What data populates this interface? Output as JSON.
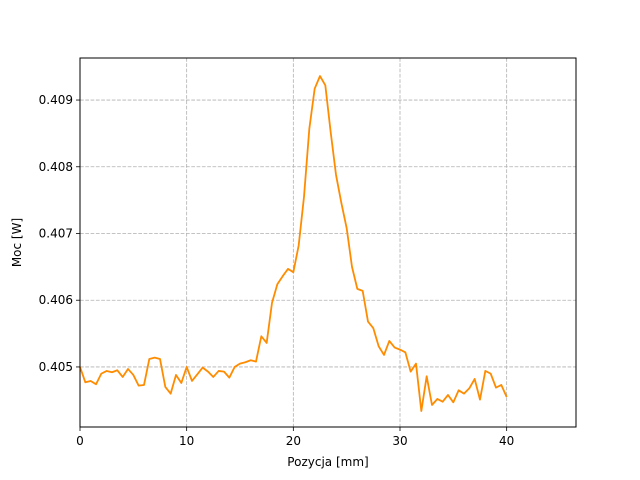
{
  "chart_data": {
    "type": "line",
    "title": "",
    "xlabel": "Pozycja [mm]",
    "ylabel": "Moc [W]",
    "xlim": [
      0,
      46.5
    ],
    "ylim": [
      0.4041,
      0.40963
    ],
    "xticks": [
      0,
      10,
      20,
      30,
      40
    ],
    "xtick_labels": [
      "0",
      "10",
      "20",
      "30",
      "40"
    ],
    "yticks": [
      0.405,
      0.406,
      0.407,
      0.408,
      0.409
    ],
    "ytick_labels": [
      "0.405",
      "0.406",
      "0.407",
      "0.408",
      "0.409"
    ],
    "grid": true,
    "legend": "none",
    "color": "#ff8c00",
    "series": [
      {
        "x": [
          0.0,
          0.5,
          1.0,
          1.5,
          2.0,
          2.5,
          3.0,
          3.5,
          4.0,
          4.5,
          5.0,
          5.5,
          6.0,
          6.5,
          7.0,
          7.5,
          8.0,
          8.5,
          9.0,
          9.5,
          10.0,
          10.5,
          11.0,
          11.5,
          12.0,
          12.5,
          13.0,
          13.5,
          14.0,
          14.5,
          15.0,
          15.5,
          16.0,
          16.5,
          17.0,
          17.5,
          18.0,
          18.5,
          19.0,
          19.5,
          20.0,
          20.5,
          21.0,
          21.5,
          22.0,
          22.5,
          23.0,
          23.5,
          24.0,
          24.5,
          25.0,
          25.5,
          26.0,
          26.5,
          27.0,
          27.5,
          28.0,
          28.5,
          29.0,
          29.5,
          30.0,
          30.5,
          31.0,
          31.5,
          32.0,
          32.5,
          33.0,
          33.5,
          34.0,
          34.5,
          35.0,
          35.5,
          36.0,
          36.5,
          37.0,
          37.5,
          38.0,
          38.5,
          39.0,
          39.5,
          40.0
        ],
        "values": [
          0.405,
          0.40477,
          0.40479,
          0.40474,
          0.4049,
          0.40494,
          0.40492,
          0.40495,
          0.40485,
          0.40497,
          0.40488,
          0.40472,
          0.40473,
          0.40512,
          0.40514,
          0.40512,
          0.4047,
          0.4046,
          0.40488,
          0.40476,
          0.405,
          0.40479,
          0.40489,
          0.40499,
          0.40493,
          0.40485,
          0.40494,
          0.40493,
          0.40484,
          0.405,
          0.40505,
          0.40507,
          0.4051,
          0.40508,
          0.40546,
          0.40536,
          0.40596,
          0.40624,
          0.40636,
          0.40647,
          0.40642,
          0.40682,
          0.40755,
          0.40857,
          0.40917,
          0.40936,
          0.40922,
          0.40852,
          0.40788,
          0.40746,
          0.40708,
          0.4065,
          0.40617,
          0.40614,
          0.40568,
          0.40558,
          0.40531,
          0.40518,
          0.40539,
          0.40529,
          0.40526,
          0.40522,
          0.40493,
          0.40505,
          0.40434,
          0.40486,
          0.40443,
          0.40452,
          0.40448,
          0.40458,
          0.40447,
          0.40465,
          0.4046,
          0.40468,
          0.40482,
          0.40451,
          0.40494,
          0.4049,
          0.40469,
          0.40473,
          0.40455
        ]
      }
    ]
  }
}
